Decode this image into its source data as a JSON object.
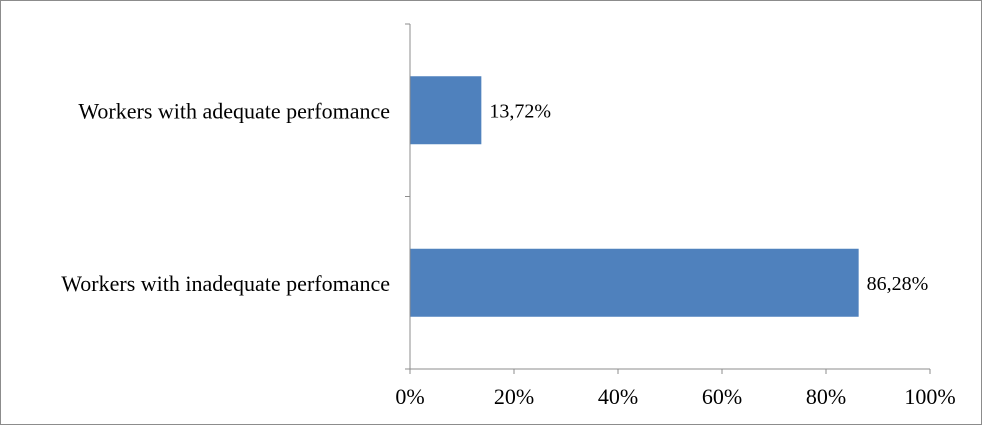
{
  "chart_data": {
    "type": "bar",
    "orientation": "horizontal",
    "categories": [
      "Workers with adequate perfomance",
      "Workers with inadequate perfomance"
    ],
    "values": [
      13.72,
      86.28
    ],
    "data_labels": [
      "13,72%",
      "86,28%"
    ],
    "xlim": [
      0,
      100
    ],
    "xticks": [
      0,
      20,
      40,
      60,
      80,
      100
    ],
    "xtick_labels": [
      "0%",
      "20%",
      "40%",
      "60%",
      "80%",
      "100%"
    ],
    "title": "",
    "xlabel": "",
    "ylabel": "",
    "grid": false,
    "legend": "none",
    "bar_color": "#4f81bd",
    "axis_color": "#8c8c8c"
  }
}
